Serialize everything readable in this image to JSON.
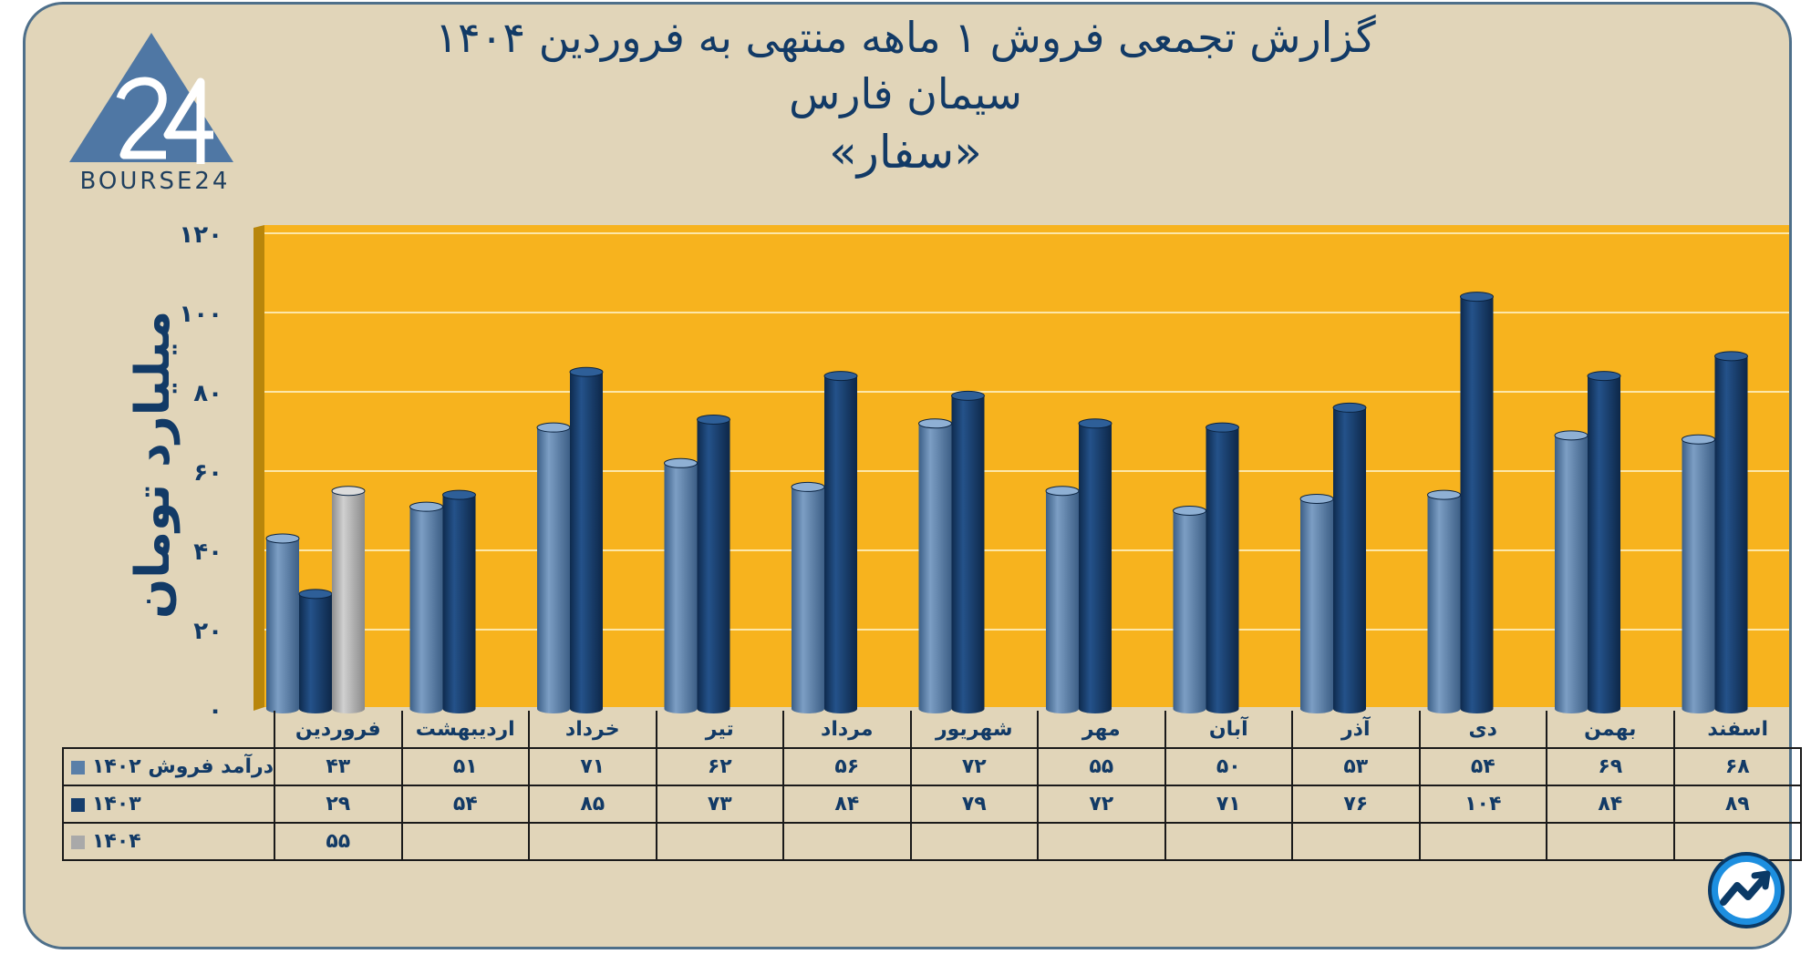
{
  "title": {
    "line1": "گزارش تجمعی فروش ۱ ماهه منتهی به فروردین ۱۴۰۴",
    "line2": "سیمان فارس",
    "line3": "«سفار»"
  },
  "logo": {
    "text": "BOURSE24",
    "icon": "bourse24-triangle-logo"
  },
  "badge_icon": "trend-arrow-icon",
  "colors": {
    "background": "#e1d5b9",
    "plot": "#f7b31e",
    "series_1402": "#5a7fa8",
    "series_1403": "#163d6c",
    "series_1404": "#a9a9a9",
    "text": "#123a66"
  },
  "chart_data": {
    "type": "bar",
    "ylabel": "میلیارد تومان",
    "ylim": [
      0,
      120
    ],
    "yticks": [
      "۰",
      "۲۰",
      "۴۰",
      "۶۰",
      "۸۰",
      "۱۰۰",
      "۱۲۰"
    ],
    "ytick_values": [
      0,
      20,
      40,
      60,
      80,
      100,
      120
    ],
    "categories": [
      "فروردین",
      "اردیبهشت",
      "خرداد",
      "تیر",
      "مرداد",
      "شهریور",
      "مهر",
      "آبان",
      "آذر",
      "دی",
      "بهمن",
      "اسفند"
    ],
    "series": [
      {
        "name": "درآمد فروش ۱۴۰۲",
        "values": [
          43,
          51,
          71,
          62,
          56,
          72,
          55,
          50,
          53,
          54,
          69,
          68
        ],
        "labels": [
          "۴۳",
          "۵۱",
          "۷۱",
          "۶۲",
          "۵۶",
          "۷۲",
          "۵۵",
          "۵۰",
          "۵۳",
          "۵۴",
          "۶۹",
          "۶۸"
        ]
      },
      {
        "name": "۱۴۰۳",
        "values": [
          29,
          54,
          85,
          73,
          84,
          79,
          72,
          71,
          76,
          104,
          84,
          89
        ],
        "labels": [
          "۲۹",
          "۵۴",
          "۸۵",
          "۷۳",
          "۸۴",
          "۷۹",
          "۷۲",
          "۷۱",
          "۷۶",
          "۱۰۴",
          "۸۴",
          "۸۹"
        ]
      },
      {
        "name": "۱۴۰۴",
        "values": [
          55,
          null,
          null,
          null,
          null,
          null,
          null,
          null,
          null,
          null,
          null,
          null
        ],
        "labels": [
          "۵۵",
          "",
          "",
          "",
          "",
          "",
          "",
          "",
          "",
          "",
          "",
          ""
        ]
      }
    ],
    "grid": true,
    "legend": "table-bottom"
  }
}
